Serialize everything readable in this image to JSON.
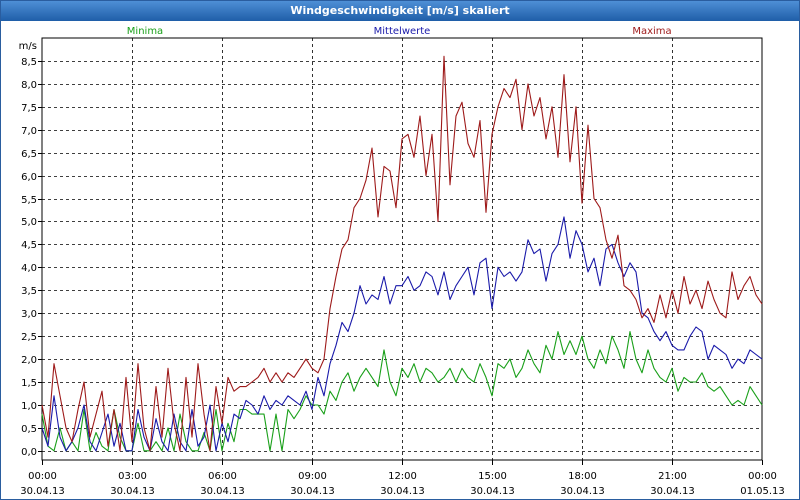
{
  "window": {
    "title": "Windgeschwindigkeit [m/s] skaliert"
  },
  "colors": {
    "minima": "#1aa01a",
    "mittel": "#1a1aaa",
    "maxima": "#9e1a1a",
    "grid": "#000000",
    "title_bg": "#2a6cc0"
  },
  "chart_data": {
    "type": "line",
    "title": "Windgeschwindigkeit [m/s] skaliert",
    "ylabel": "m/s",
    "xlabel": "",
    "ylim": [
      -0.2,
      9.0
    ],
    "xlim": [
      0,
      24
    ],
    "y_ticks": [
      "0,0",
      "0,5",
      "1,0",
      "1,5",
      "2,0",
      "2,5",
      "3,0",
      "3,5",
      "4,0",
      "4,5",
      "5,0",
      "5,5",
      "6,0",
      "6,5",
      "7,0",
      "7,5",
      "8,0",
      "8,5"
    ],
    "x_ticks": [
      {
        "time": "00:00",
        "date": "30.04.13"
      },
      {
        "time": "03:00",
        "date": "30.04.13"
      },
      {
        "time": "06:00",
        "date": "30.04.13"
      },
      {
        "time": "09:00",
        "date": "30.04.13"
      },
      {
        "time": "12:00",
        "date": "30.04.13"
      },
      {
        "time": "15:00",
        "date": "30.04.13"
      },
      {
        "time": "18:00",
        "date": "30.04.13"
      },
      {
        "time": "21:00",
        "date": "30.04.13"
      },
      {
        "time": "00:00",
        "date": "01.05.13"
      }
    ],
    "grid": true,
    "legend_position": "top",
    "series": [
      {
        "name": "Minima",
        "color": "#1aa01a",
        "x": [
          0,
          0.2,
          0.4,
          0.6,
          0.8,
          1.0,
          1.2,
          1.4,
          1.6,
          1.8,
          2.0,
          2.2,
          2.4,
          2.6,
          2.8,
          3.0,
          3.2,
          3.4,
          3.6,
          3.8,
          4.0,
          4.2,
          4.4,
          4.6,
          4.8,
          5.0,
          5.2,
          5.4,
          5.6,
          5.8,
          6.0,
          6.2,
          6.4,
          6.6,
          6.8,
          7.0,
          7.2,
          7.4,
          7.6,
          7.8,
          8.0,
          8.2,
          8.4,
          8.6,
          8.8,
          9.0,
          9.2,
          9.4,
          9.6,
          9.8,
          10.0,
          10.2,
          10.4,
          10.6,
          10.8,
          11.0,
          11.2,
          11.4,
          11.6,
          11.8,
          12.0,
          12.2,
          12.4,
          12.6,
          12.8,
          13.0,
          13.2,
          13.4,
          13.6,
          13.8,
          14.0,
          14.2,
          14.4,
          14.6,
          14.8,
          15.0,
          15.2,
          15.4,
          15.6,
          15.8,
          16.0,
          16.2,
          16.4,
          16.6,
          16.8,
          17.0,
          17.2,
          17.4,
          17.6,
          17.8,
          18.0,
          18.2,
          18.4,
          18.6,
          18.8,
          19.0,
          19.2,
          19.4,
          19.6,
          19.8,
          20.0,
          20.2,
          20.4,
          20.6,
          20.8,
          21.0,
          21.2,
          21.4,
          21.6,
          21.8,
          22.0,
          22.2,
          22.4,
          22.6,
          22.8,
          23.0,
          23.2,
          23.4,
          23.6,
          23.8,
          24.0
        ],
        "values": [
          0.8,
          0.1,
          0.0,
          0.5,
          0.0,
          0.2,
          0.0,
          0.9,
          0.0,
          0.4,
          0.1,
          0.0,
          0.9,
          0.3,
          0.0,
          0.0,
          0.6,
          0.0,
          0.0,
          0.2,
          0.0,
          0.5,
          0.0,
          0.8,
          0.2,
          0.0,
          0.0,
          0.4,
          0.0,
          0.9,
          0.0,
          0.6,
          0.2,
          0.9,
          0.9,
          0.8,
          0.8,
          0.8,
          0.0,
          0.8,
          0.0,
          0.9,
          0.7,
          0.9,
          1.2,
          1.0,
          1.0,
          0.8,
          1.3,
          1.1,
          1.5,
          1.7,
          1.3,
          1.6,
          1.8,
          1.6,
          1.4,
          2.2,
          1.5,
          1.2,
          1.8,
          1.6,
          1.9,
          1.5,
          1.8,
          1.7,
          1.5,
          1.6,
          1.8,
          1.5,
          1.8,
          1.6,
          1.5,
          1.9,
          1.6,
          1.2,
          1.9,
          1.8,
          2.0,
          1.6,
          1.8,
          2.2,
          1.9,
          1.7,
          2.3,
          2.0,
          2.6,
          2.1,
          2.4,
          2.1,
          2.5,
          2.0,
          1.8,
          2.2,
          1.9,
          2.5,
          2.2,
          1.8,
          2.6,
          2.0,
          1.7,
          2.2,
          1.8,
          1.6,
          1.5,
          1.8,
          1.3,
          1.6,
          1.5,
          1.5,
          1.7,
          1.4,
          1.3,
          1.4,
          1.2,
          1.0,
          1.1,
          1.0,
          1.4,
          1.2,
          1.0
        ]
      },
      {
        "name": "Mittelwerte",
        "color": "#1a1aaa",
        "x": [
          0,
          0.2,
          0.4,
          0.6,
          0.8,
          1.0,
          1.2,
          1.4,
          1.6,
          1.8,
          2.0,
          2.2,
          2.4,
          2.6,
          2.8,
          3.0,
          3.2,
          3.4,
          3.6,
          3.8,
          4.0,
          4.2,
          4.4,
          4.6,
          4.8,
          5.0,
          5.2,
          5.4,
          5.6,
          5.8,
          6.0,
          6.2,
          6.4,
          6.6,
          6.8,
          7.0,
          7.2,
          7.4,
          7.6,
          7.8,
          8.0,
          8.2,
          8.4,
          8.6,
          8.8,
          9.0,
          9.2,
          9.4,
          9.6,
          9.8,
          10.0,
          10.2,
          10.4,
          10.6,
          10.8,
          11.0,
          11.2,
          11.4,
          11.6,
          11.8,
          12.0,
          12.2,
          12.4,
          12.6,
          12.8,
          13.0,
          13.2,
          13.4,
          13.6,
          13.8,
          14.0,
          14.2,
          14.4,
          14.6,
          14.8,
          15.0,
          15.2,
          15.4,
          15.6,
          15.8,
          16.0,
          16.2,
          16.4,
          16.6,
          16.8,
          17.0,
          17.2,
          17.4,
          17.6,
          17.8,
          18.0,
          18.2,
          18.4,
          18.6,
          18.8,
          19.0,
          19.2,
          19.4,
          19.6,
          19.8,
          20.0,
          20.2,
          20.4,
          20.6,
          20.8,
          21.0,
          21.2,
          21.4,
          21.6,
          21.8,
          22.0,
          22.2,
          22.4,
          22.6,
          22.8,
          23.0,
          23.2,
          23.4,
          23.6,
          23.8,
          24.0
        ],
        "values": [
          0.5,
          0.1,
          1.2,
          0.3,
          0.0,
          0.2,
          0.5,
          1.0,
          0.2,
          0.0,
          0.4,
          0.8,
          0.1,
          0.6,
          0.0,
          0.0,
          0.9,
          0.3,
          0.0,
          0.7,
          0.2,
          0.0,
          0.8,
          0.2,
          0.0,
          0.9,
          0.1,
          0.3,
          1.0,
          0.0,
          0.6,
          0.2,
          0.8,
          0.7,
          1.1,
          1.0,
          0.8,
          1.2,
          0.9,
          1.1,
          1.0,
          1.2,
          1.1,
          1.0,
          1.3,
          0.9,
          1.6,
          1.2,
          1.9,
          2.3,
          2.8,
          2.6,
          3.0,
          3.6,
          3.2,
          3.4,
          3.3,
          3.8,
          3.2,
          3.6,
          3.6,
          3.8,
          3.5,
          3.6,
          3.9,
          3.8,
          3.4,
          3.9,
          3.3,
          3.6,
          3.8,
          4.0,
          3.4,
          4.1,
          4.2,
          3.1,
          4.0,
          3.8,
          3.9,
          3.7,
          3.9,
          4.6,
          4.3,
          4.4,
          3.7,
          4.3,
          4.5,
          5.1,
          4.2,
          4.8,
          4.5,
          3.9,
          4.2,
          3.6,
          4.4,
          4.5,
          4.1,
          3.8,
          4.1,
          3.9,
          3.0,
          2.9,
          2.6,
          2.4,
          2.6,
          2.3,
          2.2,
          2.2,
          2.5,
          2.7,
          2.6,
          2.0,
          2.3,
          2.2,
          2.1,
          1.8,
          2.0,
          1.9,
          2.2,
          2.1,
          2.0
        ]
      },
      {
        "name": "Maxima",
        "color": "#9e1a1a",
        "x": [
          0,
          0.2,
          0.4,
          0.6,
          0.8,
          1.0,
          1.2,
          1.4,
          1.6,
          1.8,
          2.0,
          2.2,
          2.4,
          2.6,
          2.8,
          3.0,
          3.2,
          3.4,
          3.6,
          3.8,
          4.0,
          4.2,
          4.4,
          4.6,
          4.8,
          5.0,
          5.2,
          5.4,
          5.6,
          5.8,
          6.0,
          6.2,
          6.4,
          6.6,
          6.8,
          7.0,
          7.2,
          7.4,
          7.6,
          7.8,
          8.0,
          8.2,
          8.4,
          8.6,
          8.8,
          9.0,
          9.2,
          9.4,
          9.6,
          9.8,
          10.0,
          10.2,
          10.4,
          10.6,
          10.8,
          11.0,
          11.2,
          11.4,
          11.6,
          11.8,
          12.0,
          12.2,
          12.4,
          12.6,
          12.8,
          13.0,
          13.2,
          13.4,
          13.6,
          13.8,
          14.0,
          14.2,
          14.4,
          14.6,
          14.8,
          15.0,
          15.2,
          15.4,
          15.6,
          15.8,
          16.0,
          16.2,
          16.4,
          16.6,
          16.8,
          17.0,
          17.2,
          17.4,
          17.6,
          17.8,
          18.0,
          18.2,
          18.4,
          18.6,
          18.8,
          19.0,
          19.2,
          19.4,
          19.6,
          19.8,
          20.0,
          20.2,
          20.4,
          20.6,
          20.8,
          21.0,
          21.2,
          21.4,
          21.6,
          21.8,
          22.0,
          22.2,
          22.4,
          22.6,
          22.8,
          23.0,
          23.2,
          23.4,
          23.6,
          23.8,
          24.0
        ],
        "values": [
          1.0,
          0.3,
          1.9,
          1.2,
          0.5,
          0.2,
          0.9,
          1.5,
          0.3,
          0.8,
          1.3,
          0.1,
          0.9,
          0.0,
          1.6,
          0.2,
          1.9,
          0.5,
          0.0,
          1.4,
          0.3,
          1.8,
          0.6,
          0.0,
          1.6,
          0.3,
          1.9,
          0.8,
          0.0,
          1.4,
          0.6,
          1.6,
          1.3,
          1.4,
          1.4,
          1.5,
          1.6,
          1.8,
          1.5,
          1.7,
          1.5,
          1.7,
          1.6,
          1.8,
          2.0,
          1.8,
          1.7,
          2.0,
          3.1,
          3.8,
          4.4,
          4.6,
          5.3,
          5.5,
          5.9,
          6.6,
          5.1,
          6.2,
          6.1,
          5.3,
          6.8,
          6.9,
          6.4,
          7.3,
          6.0,
          6.9,
          5.0,
          8.6,
          5.8,
          7.3,
          7.6,
          6.7,
          6.4,
          7.2,
          5.2,
          6.9,
          7.5,
          7.9,
          7.7,
          8.1,
          7.0,
          8.0,
          7.3,
          7.7,
          6.8,
          7.5,
          6.4,
          8.2,
          6.3,
          7.5,
          5.4,
          7.1,
          5.5,
          5.3,
          4.6,
          4.2,
          4.7,
          3.6,
          3.5,
          3.3,
          2.9,
          3.1,
          2.8,
          3.4,
          2.9,
          3.5,
          3.0,
          3.8,
          3.2,
          3.5,
          3.1,
          3.7,
          3.3,
          3.0,
          2.9,
          3.9,
          3.3,
          3.6,
          3.8,
          3.4,
          3.2
        ]
      }
    ]
  }
}
